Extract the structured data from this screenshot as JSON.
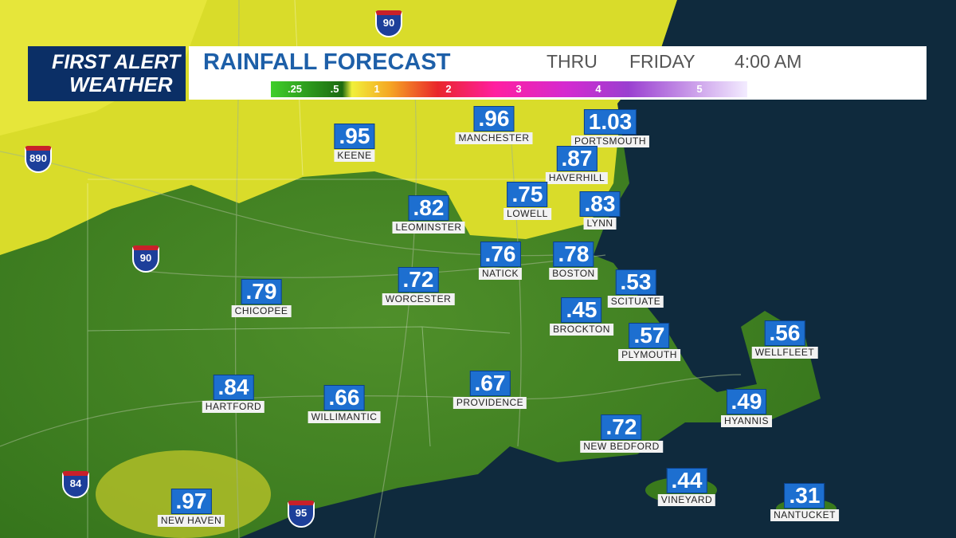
{
  "header": {
    "logo_top": "FIRST ALERT",
    "logo_bottom": "WEATHER",
    "title": "RAINFALL FORECAST",
    "thru": "THRU",
    "day": "FRIDAY",
    "time": "4:00 AM"
  },
  "legend": {
    "labels": [
      ".25",
      ".5",
      "1",
      "2",
      "3",
      "4",
      "5"
    ]
  },
  "cities": [
    {
      "name": "KEENE",
      "value": ".95"
    },
    {
      "name": "MANCHESTER",
      "value": ".96"
    },
    {
      "name": "PORTSMOUTH",
      "value": "1.03"
    },
    {
      "name": "HAVERHILL",
      "value": ".87"
    },
    {
      "name": "LOWELL",
      "value": ".75"
    },
    {
      "name": "LYNN",
      "value": ".83"
    },
    {
      "name": "LEOMINSTER",
      "value": ".82"
    },
    {
      "name": "NATICK",
      "value": ".76"
    },
    {
      "name": "BOSTON",
      "value": ".78"
    },
    {
      "name": "WORCESTER",
      "value": ".72"
    },
    {
      "name": "SCITUATE",
      "value": ".53"
    },
    {
      "name": "CHICOPEE",
      "value": ".79"
    },
    {
      "name": "BROCKTON",
      "value": ".45"
    },
    {
      "name": "PLYMOUTH",
      "value": ".57"
    },
    {
      "name": "WELLFLEET",
      "value": ".56"
    },
    {
      "name": "HARTFORD",
      "value": ".84"
    },
    {
      "name": "WILLIMANTIC",
      "value": ".66"
    },
    {
      "name": "PROVIDENCE",
      "value": ".67"
    },
    {
      "name": "HYANNIS",
      "value": ".49"
    },
    {
      "name": "NEW BEDFORD",
      "value": ".72"
    },
    {
      "name": "VINEYARD",
      "value": ".44"
    },
    {
      "name": "NEW HAVEN",
      "value": ".97"
    },
    {
      "name": "NANTUCKET",
      "value": ".31"
    }
  ],
  "shields": [
    "890",
    "90",
    "84",
    "95",
    "90"
  ]
}
